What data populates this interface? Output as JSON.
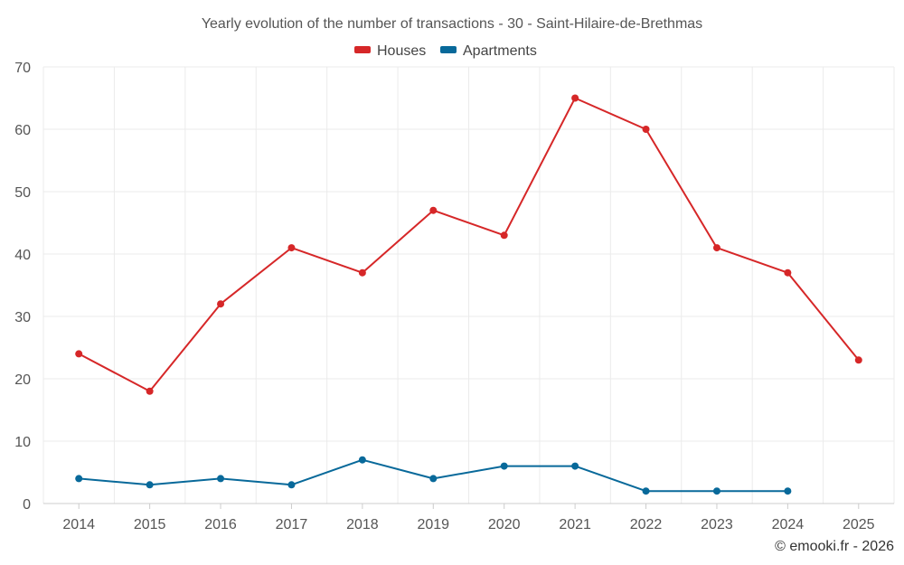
{
  "chart_data": {
    "type": "line",
    "title": "Yearly evolution of the number of transactions - 30 - Saint-Hilaire-de-Brethmas",
    "xlabel": "",
    "ylabel": "",
    "categories": [
      "2014",
      "2015",
      "2016",
      "2017",
      "2018",
      "2019",
      "2020",
      "2021",
      "2022",
      "2023",
      "2024",
      "2025"
    ],
    "ylim": [
      0,
      70
    ],
    "yticks": [
      0,
      10,
      20,
      30,
      40,
      50,
      60,
      70
    ],
    "grid": true,
    "legend_position": "top-center",
    "series": [
      {
        "name": "Houses",
        "color": "#d62728",
        "values": [
          24,
          18,
          32,
          41,
          37,
          47,
          43,
          65,
          60,
          41,
          37,
          23
        ]
      },
      {
        "name": "Apartments",
        "color": "#08699a",
        "values": [
          4,
          3,
          4,
          3,
          7,
          4,
          6,
          6,
          2,
          2,
          2,
          null
        ]
      }
    ]
  },
  "credit": "© emooki.fr - 2026"
}
